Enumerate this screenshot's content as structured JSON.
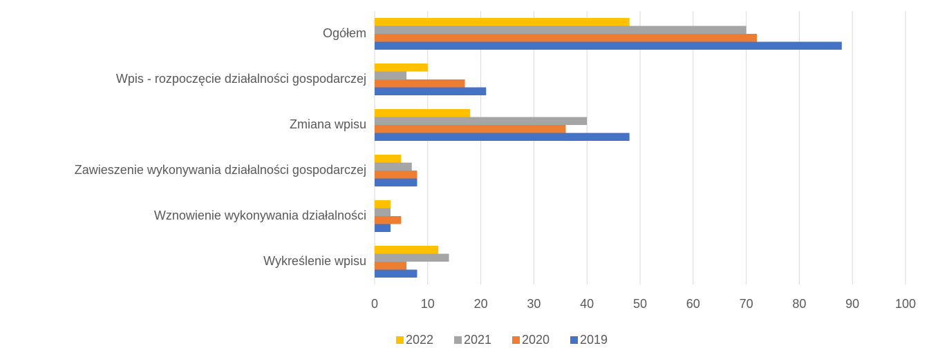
{
  "chart_data": {
    "type": "bar",
    "orientation": "horizontal",
    "categories": [
      "Ogółem",
      "Wpis - rozpoczęcie działalności gospodarczej",
      "Zmiana wpisu",
      "Zawieszenie wykonywania działalności gospodarczej",
      "Wznowienie wykonywania działalności",
      "Wykreślenie wpisu"
    ],
    "series": [
      {
        "name": "2022",
        "color": "#ffc000",
        "values": [
          48,
          10,
          18,
          5,
          3,
          12
        ]
      },
      {
        "name": "2021",
        "color": "#a5a5a5",
        "values": [
          70,
          6,
          40,
          7,
          3,
          14
        ]
      },
      {
        "name": "2020",
        "color": "#ed7d31",
        "values": [
          72,
          17,
          36,
          8,
          5,
          6
        ]
      },
      {
        "name": "2019",
        "color": "#4472c4",
        "values": [
          88,
          21,
          48,
          8,
          3,
          8
        ]
      }
    ],
    "xlim": [
      0,
      100
    ],
    "xticks": [
      0,
      10,
      20,
      30,
      40,
      50,
      60,
      70,
      80,
      90,
      100
    ],
    "grid": true,
    "legend": "bottom"
  }
}
